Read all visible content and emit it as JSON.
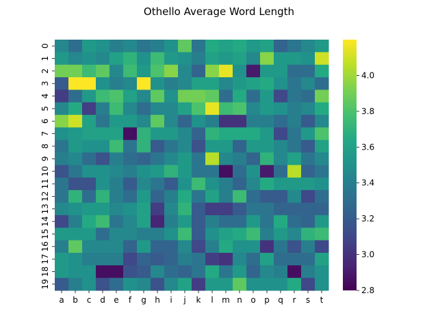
{
  "chart_data": {
    "type": "heatmap",
    "title": "Othello Average Word Length",
    "xlabel": "",
    "ylabel": "",
    "x_categories": [
      "a",
      "b",
      "c",
      "d",
      "e",
      "f",
      "g",
      "h",
      "i",
      "j",
      "k",
      "l",
      "m",
      "n",
      "o",
      "p",
      "q",
      "r",
      "s",
      "t"
    ],
    "y_categories": [
      "0",
      "1",
      "2",
      "3",
      "4",
      "5",
      "6",
      "7",
      "8",
      "9",
      "10",
      "11",
      "12",
      "13",
      "14",
      "15",
      "16",
      "17",
      "18",
      "19"
    ],
    "colorbar": {
      "min": 2.8,
      "max": 4.2,
      "ticks": [
        2.8,
        3.0,
        3.2,
        3.4,
        3.6,
        3.8,
        4.0
      ],
      "colormap": "viridis"
    },
    "values": [
      [
        3.45,
        3.3,
        3.55,
        3.5,
        3.4,
        3.45,
        3.35,
        3.4,
        3.5,
        3.85,
        3.35,
        3.65,
        3.6,
        3.65,
        3.55,
        3.6,
        3.25,
        3.35,
        3.45,
        3.55
      ],
      [
        3.55,
        3.45,
        3.5,
        3.45,
        3.6,
        3.7,
        3.5,
        3.75,
        3.55,
        3.5,
        3.4,
        3.6,
        3.55,
        3.6,
        3.45,
        3.95,
        3.55,
        3.55,
        3.5,
        4.1
      ],
      [
        3.9,
        3.9,
        3.75,
        3.85,
        3.45,
        3.75,
        3.55,
        3.8,
        3.95,
        3.45,
        3.25,
        3.95,
        4.15,
        3.5,
        2.9,
        3.55,
        3.55,
        3.3,
        3.3,
        3.65
      ],
      [
        3.2,
        4.2,
        4.2,
        3.5,
        3.4,
        3.45,
        4.2,
        3.5,
        3.4,
        3.45,
        3.6,
        3.6,
        3.45,
        3.55,
        3.6,
        3.65,
        3.5,
        3.35,
        3.45,
        3.3
      ],
      [
        3.05,
        3.3,
        3.55,
        3.75,
        3.8,
        3.6,
        3.45,
        3.85,
        3.5,
        3.9,
        3.9,
        3.85,
        3.3,
        3.65,
        3.3,
        3.55,
        3.1,
        3.35,
        3.3,
        3.9
      ],
      [
        3.45,
        3.65,
        3.05,
        3.4,
        3.75,
        3.45,
        3.3,
        3.45,
        3.45,
        3.6,
        3.8,
        4.15,
        3.75,
        3.8,
        3.45,
        3.55,
        3.5,
        3.4,
        3.45,
        3.65
      ],
      [
        3.95,
        4.1,
        3.6,
        3.35,
        3.55,
        3.55,
        3.45,
        3.85,
        3.45,
        3.25,
        3.5,
        3.4,
        3.0,
        3.0,
        3.4,
        3.4,
        3.3,
        3.4,
        3.2,
        3.45
      ],
      [
        3.5,
        3.55,
        3.6,
        3.6,
        3.6,
        2.85,
        3.7,
        3.55,
        3.55,
        3.45,
        3.25,
        3.7,
        3.65,
        3.65,
        3.65,
        3.55,
        3.1,
        3.35,
        3.55,
        3.8
      ],
      [
        3.35,
        3.55,
        3.5,
        3.5,
        3.75,
        3.35,
        3.7,
        3.2,
        3.35,
        3.45,
        3.15,
        3.55,
        3.55,
        3.25,
        3.55,
        3.55,
        3.45,
        3.35,
        3.2,
        3.6
      ],
      [
        3.4,
        3.45,
        3.3,
        3.15,
        3.4,
        3.3,
        3.25,
        3.35,
        3.45,
        3.55,
        3.35,
        4.05,
        3.45,
        3.4,
        3.25,
        3.7,
        3.45,
        3.6,
        3.35,
        3.45
      ],
      [
        3.15,
        3.35,
        3.5,
        3.5,
        3.45,
        3.4,
        3.5,
        3.55,
        3.7,
        3.55,
        3.35,
        3.35,
        2.85,
        3.3,
        3.5,
        2.9,
        3.3,
        4.05,
        3.25,
        3.35
      ],
      [
        3.35,
        3.15,
        3.15,
        3.5,
        3.4,
        3.2,
        3.45,
        3.35,
        3.2,
        3.5,
        3.75,
        3.5,
        3.4,
        3.25,
        3.45,
        3.65,
        3.55,
        3.55,
        3.55,
        3.5
      ],
      [
        3.35,
        3.7,
        3.3,
        3.7,
        3.4,
        3.3,
        3.55,
        3.25,
        3.4,
        3.65,
        3.35,
        3.6,
        3.4,
        3.75,
        3.3,
        3.2,
        3.2,
        3.45,
        3.1,
        3.3
      ],
      [
        3.45,
        3.5,
        3.55,
        3.55,
        3.45,
        3.5,
        3.6,
        3.05,
        3.45,
        3.7,
        3.2,
        3.05,
        3.05,
        3.2,
        3.35,
        3.35,
        3.25,
        3.25,
        3.25,
        3.25
      ],
      [
        3.1,
        3.4,
        3.65,
        3.75,
        3.35,
        3.45,
        3.6,
        2.95,
        3.4,
        3.55,
        3.2,
        3.4,
        3.3,
        3.3,
        3.55,
        3.35,
        3.65,
        3.3,
        3.25,
        3.55
      ],
      [
        3.55,
        3.55,
        3.55,
        3.3,
        3.45,
        3.45,
        3.4,
        3.4,
        3.5,
        3.75,
        3.2,
        3.5,
        3.6,
        3.65,
        3.75,
        3.4,
        3.55,
        3.45,
        3.7,
        3.75
      ],
      [
        3.4,
        3.85,
        3.45,
        3.45,
        3.45,
        3.25,
        3.55,
        3.25,
        3.25,
        3.45,
        3.1,
        3.4,
        3.65,
        3.5,
        3.5,
        3.0,
        3.35,
        3.15,
        3.4,
        3.1
      ],
      [
        3.55,
        3.5,
        3.4,
        3.4,
        3.4,
        3.1,
        3.25,
        3.2,
        3.25,
        3.4,
        3.35,
        3.05,
        3.0,
        3.45,
        3.3,
        3.6,
        3.3,
        3.3,
        3.3,
        3.6
      ],
      [
        3.55,
        3.5,
        3.5,
        2.85,
        2.85,
        3.15,
        3.2,
        3.45,
        3.3,
        3.25,
        3.35,
        3.65,
        3.35,
        3.55,
        3.25,
        3.45,
        3.4,
        2.85,
        3.4,
        3.5
      ],
      [
        3.2,
        3.4,
        3.5,
        3.15,
        3.3,
        3.5,
        3.45,
        3.15,
        3.45,
        3.6,
        3.05,
        3.55,
        3.55,
        3.85,
        3.5,
        3.5,
        3.5,
        3.65,
        3.1,
        3.5
      ]
    ]
  }
}
